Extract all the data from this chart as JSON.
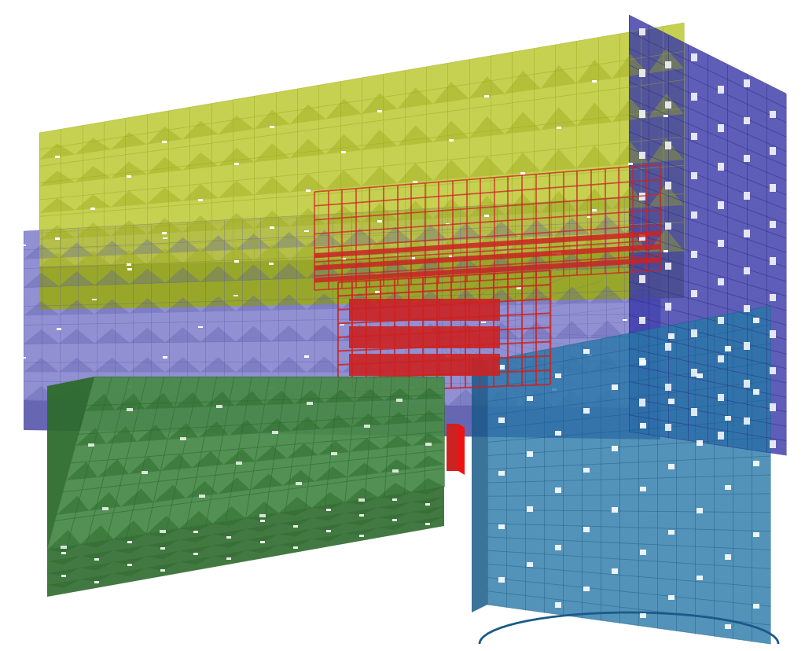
{
  "background_color": "#ffffff",
  "figsize": [
    10.24,
    8.29
  ],
  "dpi": 100,
  "yellow_color": "#bcc832",
  "yellow_dark": "#9aaa18",
  "purple_color": "#7878c8",
  "purple_dark": "#5555aa",
  "green_color": "#4a8a4a",
  "green_dark": "#2d6b2d",
  "teal_color": "#2878a8",
  "teal_dark": "#1a5a88",
  "blue_color": "#3a3aaa",
  "blue_dark": "#252580",
  "red_color": "#cc2222",
  "red_bright": "#ee1111"
}
